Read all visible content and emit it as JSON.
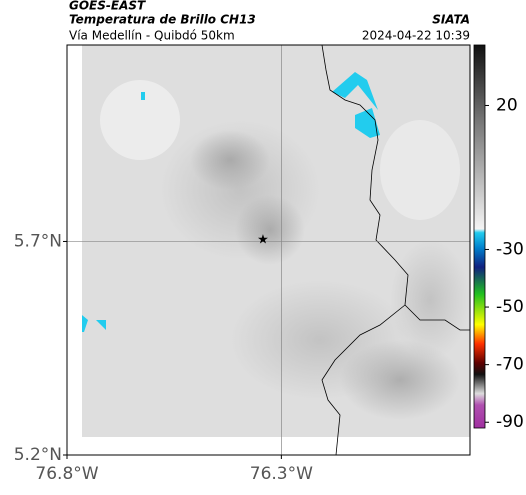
{
  "header": {
    "line1": "GOES-EAST",
    "line2": "Temperatura de Brillo CH13",
    "org": "SIATA",
    "route": "Vía Medellín - Quibdó 50km",
    "timestamp": "2024-04-22 10:39"
  },
  "map": {
    "latlim": [
      5.2,
      6.16
    ],
    "lonlim": [
      -76.8,
      -75.86
    ],
    "lat_ticks": [
      {
        "value": 5.7,
        "label": "5.7°N"
      },
      {
        "value": 5.2,
        "label": "5.2°N"
      }
    ],
    "lon_ticks": [
      {
        "value": -76.8,
        "label": "76.8°W"
      },
      {
        "value": -76.3,
        "label": "76.3°W"
      }
    ],
    "grid": true
  },
  "colorbar": {
    "lim": [
      41,
      -92
    ],
    "ticks": [
      20,
      -30,
      -50,
      -70,
      -90
    ]
  }
}
